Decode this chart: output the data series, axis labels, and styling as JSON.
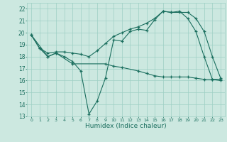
{
  "title": "",
  "xlabel": "Humidex (Indice chaleur)",
  "bg_color": "#cce8e0",
  "line_color": "#1a6e5e",
  "grid_color": "#9ecfc4",
  "xlim": [
    -0.5,
    23.5
  ],
  "ylim": [
    13,
    22.5
  ],
  "yticks": [
    13,
    14,
    15,
    16,
    17,
    18,
    19,
    20,
    21,
    22
  ],
  "xticks": [
    0,
    1,
    2,
    3,
    4,
    5,
    6,
    7,
    8,
    9,
    10,
    11,
    12,
    13,
    14,
    15,
    16,
    17,
    18,
    19,
    20,
    21,
    22,
    23
  ],
  "line1_x": [
    0,
    1,
    2,
    3,
    4,
    5,
    6,
    7,
    8,
    9,
    10,
    11,
    12,
    13,
    14,
    15,
    16,
    17,
    18,
    19,
    20,
    21,
    22,
    23
  ],
  "line1_y": [
    19.8,
    18.7,
    18.0,
    18.3,
    18.0,
    17.6,
    16.8,
    13.2,
    14.3,
    16.2,
    19.4,
    19.3,
    20.1,
    20.3,
    20.2,
    21.1,
    21.8,
    21.7,
    21.8,
    21.2,
    20.1,
    18.0,
    16.1,
    16.1
  ],
  "line2_x": [
    0,
    1,
    2,
    3,
    4,
    5,
    6,
    7,
    8,
    9,
    10,
    11,
    12,
    13,
    14,
    15,
    16,
    17,
    18,
    19,
    20,
    21,
    22,
    23
  ],
  "line2_y": [
    19.8,
    18.7,
    18.3,
    18.4,
    18.4,
    18.3,
    18.2,
    18.0,
    18.5,
    19.1,
    19.7,
    20.0,
    20.3,
    20.5,
    20.8,
    21.2,
    21.8,
    21.7,
    21.7,
    21.7,
    21.2,
    20.1,
    18.0,
    16.2
  ],
  "line3_x": [
    0,
    2,
    3,
    5,
    9,
    10,
    11,
    13,
    14,
    15,
    16,
    17,
    18,
    19,
    20,
    21,
    22,
    23
  ],
  "line3_y": [
    19.8,
    18.0,
    18.3,
    17.4,
    17.4,
    17.2,
    17.1,
    16.8,
    16.6,
    16.4,
    16.3,
    16.3,
    16.3,
    16.3,
    16.2,
    16.1,
    16.1,
    16.0
  ]
}
